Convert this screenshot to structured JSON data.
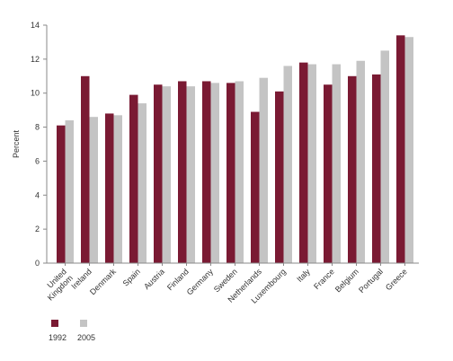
{
  "chart_data": {
    "type": "bar",
    "title": "",
    "xlabel": "",
    "ylabel": "Percent",
    "ylim": [
      0,
      14
    ],
    "yticks": [
      0,
      2,
      4,
      6,
      8,
      10,
      12,
      14
    ],
    "grid": false,
    "legend_position": "bottom-left",
    "categories": [
      "United Kingdom",
      "Ireland",
      "Denmark",
      "Spain",
      "Austria",
      "Finland",
      "Germany",
      "Sweden",
      "Netherlands",
      "Luxembourg",
      "Italy",
      "France",
      "Belgium",
      "Portugal",
      "Greece"
    ],
    "series": [
      {
        "name": "1992",
        "color": "#7a1a33",
        "values": [
          8.1,
          11.0,
          8.8,
          9.9,
          10.5,
          10.7,
          10.7,
          10.6,
          8.9,
          10.1,
          11.8,
          10.5,
          11.0,
          11.1,
          13.4
        ]
      },
      {
        "name": "2005",
        "color": "#c4c4c4",
        "values": [
          8.4,
          8.6,
          8.7,
          9.4,
          10.4,
          10.4,
          10.6,
          10.7,
          10.9,
          11.6,
          11.7,
          11.7,
          11.9,
          12.5,
          13.3
        ]
      }
    ]
  }
}
